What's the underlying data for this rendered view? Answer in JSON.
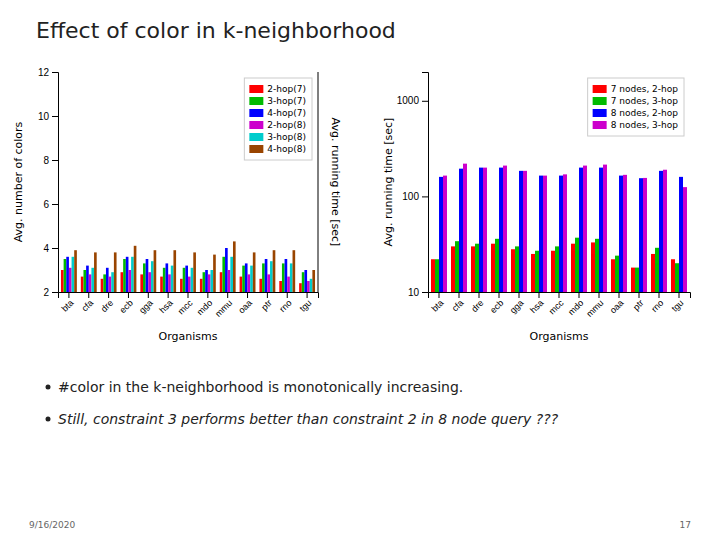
{
  "title": "Effect of color in k-neighborhood",
  "annotations": [
    "#color in the k-neighborhood is monotonically increasing.",
    "Still, constraint 3 performs better than constraint 2 in 8 node query ???",
    "9/16/2020",
    "17"
  ],
  "chart_data": [
    {
      "type": "bar",
      "xlabel": "Organisms",
      "ylabel": "Avg. number of colors",
      "y2label": "Avg. running time [sec]",
      "categories": [
        "bta",
        "cfa",
        "dre",
        "ecb",
        "gga",
        "hsa",
        "mcc",
        "mdo",
        "mmu",
        "oaa",
        "ptr",
        "rno",
        "tgu"
      ],
      "ylim": [
        2,
        12
      ],
      "yticks": [
        2,
        4,
        6,
        8,
        10,
        12
      ],
      "grid": false,
      "legend": "upper right",
      "series": [
        {
          "name": "2-hop(7)",
          "color": "#ff0000",
          "values": [
            3.0,
            2.7,
            2.6,
            2.9,
            2.8,
            2.7,
            2.6,
            2.6,
            2.9,
            2.7,
            2.6,
            2.5,
            2.4
          ]
        },
        {
          "name": "3-hop(7)",
          "color": "#00bb00",
          "values": [
            3.5,
            3.0,
            2.8,
            3.5,
            3.3,
            3.1,
            3.1,
            2.9,
            3.6,
            3.2,
            3.3,
            3.3,
            2.9
          ]
        },
        {
          "name": "4-hop(7)",
          "color": "#0000ff",
          "values": [
            3.6,
            3.2,
            3.1,
            3.6,
            3.5,
            3.3,
            3.2,
            3.0,
            4.0,
            3.3,
            3.5,
            3.5,
            3.0
          ]
        },
        {
          "name": "2-hop(8)",
          "color": "#cc00cc",
          "values": [
            3.1,
            2.8,
            2.7,
            3.0,
            2.9,
            2.8,
            2.7,
            2.8,
            3.0,
            2.8,
            2.8,
            2.7,
            2.5
          ]
        },
        {
          "name": "3-hop(8)",
          "color": "#00cccc",
          "values": [
            3.6,
            3.1,
            2.9,
            3.6,
            3.4,
            3.2,
            3.1,
            3.0,
            3.6,
            3.2,
            3.4,
            3.3,
            2.6
          ]
        },
        {
          "name": "4-hop(8)",
          "color": "#994400",
          "values": [
            3.9,
            3.8,
            3.8,
            4.1,
            3.9,
            3.9,
            3.8,
            3.7,
            4.3,
            3.8,
            3.9,
            3.9,
            3.0
          ]
        }
      ]
    },
    {
      "type": "bar",
      "xlabel": "Organisms",
      "ylabel": "Avg. running time [sec]",
      "categories": [
        "bta",
        "cfa",
        "dre",
        "ecb",
        "gga",
        "hsa",
        "mcc",
        "mdo",
        "mmu",
        "oaa",
        "ptr",
        "rno",
        "tgu"
      ],
      "log": "y",
      "ylim": [
        10,
        2000
      ],
      "yticks": [
        10,
        100,
        1000
      ],
      "grid": false,
      "legend": "upper right",
      "series": [
        {
          "name": "7 nodes, 2-hop",
          "color": "#ff0000",
          "values": [
            22,
            30,
            30,
            32,
            28,
            25,
            27,
            32,
            33,
            22,
            18,
            25,
            22
          ]
        },
        {
          "name": "7 nodes, 3-hop",
          "color": "#00bb00",
          "values": [
            22,
            34,
            32,
            36,
            30,
            27,
            30,
            37,
            36,
            24,
            18,
            29,
            20
          ]
        },
        {
          "name": "8 nodes, 2-hop",
          "color": "#0000ff",
          "values": [
            160,
            195,
            200,
            200,
            185,
            165,
            165,
            200,
            200,
            165,
            155,
            185,
            160
          ]
        },
        {
          "name": "8 nodes, 3-hop",
          "color": "#cc00cc",
          "values": [
            165,
            220,
            200,
            210,
            185,
            165,
            170,
            210,
            215,
            168,
            156,
            190,
            125
          ]
        }
      ]
    }
  ]
}
